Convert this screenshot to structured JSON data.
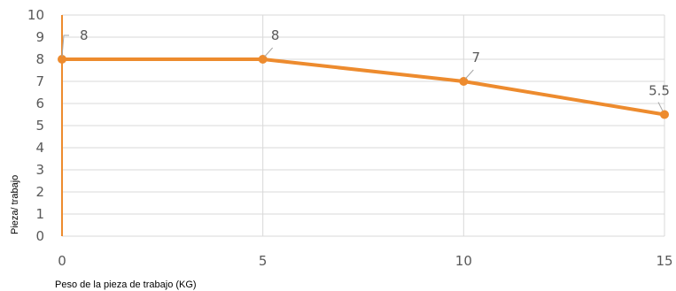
{
  "chart_data": {
    "type": "line",
    "x": [
      0,
      5,
      10,
      15
    ],
    "series": [
      {
        "values": [
          8,
          8,
          7,
          5.5
        ],
        "color": "#ED8B2E"
      }
    ],
    "data_labels": [
      "8",
      "8",
      "7",
      "5.5"
    ],
    "xlabel": "Peso de la pieza de trabajo (KG)",
    "ylabel": "Pieza/ trabajo",
    "xlim": [
      0,
      15
    ],
    "ylim": [
      0,
      10
    ],
    "x_ticks": [
      "0",
      "5",
      "10",
      "15"
    ],
    "y_ticks": [
      "0",
      "1",
      "2",
      "3",
      "4",
      "5",
      "6",
      "7",
      "8",
      "9",
      "10"
    ],
    "grid": true,
    "legend": "none",
    "colors": {
      "grid": "#D9D9D9",
      "tick_text": "#595959",
      "leader": "#A6A6A6"
    }
  }
}
